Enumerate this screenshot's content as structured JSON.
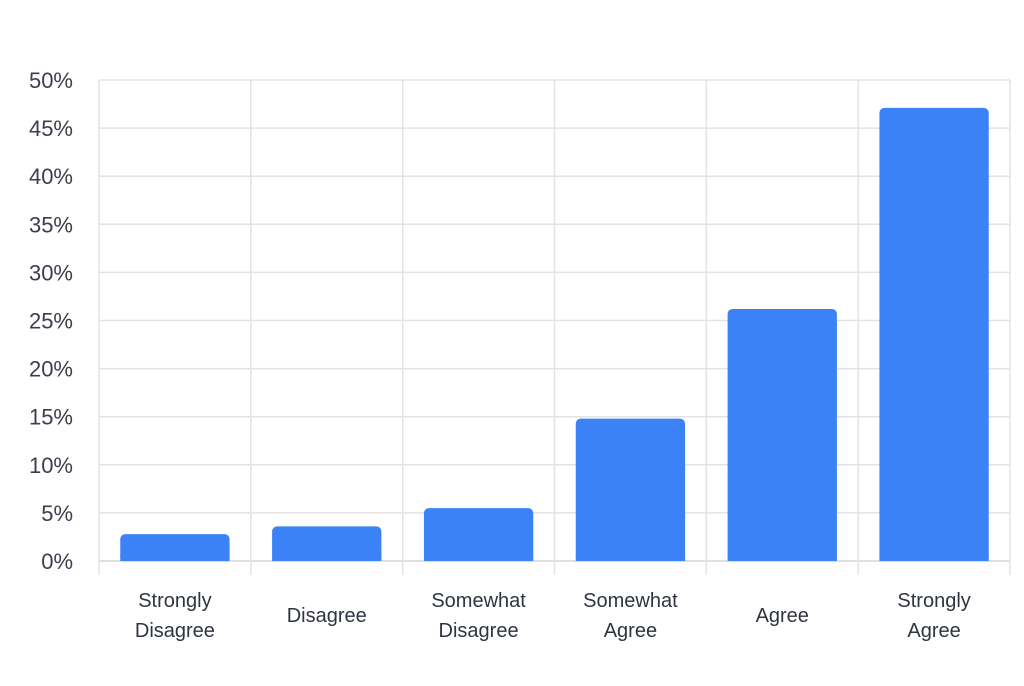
{
  "chart_data": {
    "type": "bar",
    "categories": [
      [
        "Strongly",
        "Disagree"
      ],
      [
        "Disagree"
      ],
      [
        "Somewhat",
        "Disagree"
      ],
      [
        "Somewhat",
        "Agree"
      ],
      [
        "Agree"
      ],
      [
        "Strongly",
        "Agree"
      ]
    ],
    "values": [
      2.8,
      3.6,
      5.5,
      14.8,
      26.2,
      47.1
    ],
    "ylim": [
      0,
      50
    ],
    "yticks": [
      0,
      5,
      10,
      15,
      20,
      25,
      30,
      35,
      40,
      45,
      50
    ],
    "ytick_format": "percent",
    "title": "",
    "xlabel": "",
    "ylabel": "",
    "grid": true,
    "bar_color": "#3b82f6",
    "grid_color": "#e3e3e3",
    "text_color": "#3a3f4a"
  }
}
